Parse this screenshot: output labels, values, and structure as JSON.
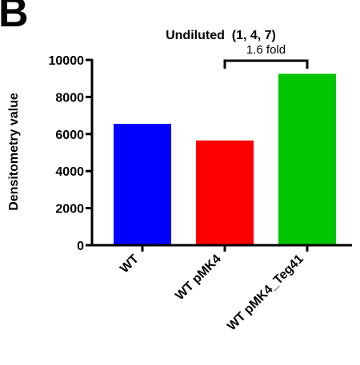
{
  "panel_label": "B",
  "chart_data": {
    "type": "bar",
    "title": "Undiluted  (1, 4, 7)",
    "ylabel": "Densitometry value",
    "xlabel": "",
    "categories": [
      "WT",
      "WT pMK4",
      "WT pMK4_Teg41"
    ],
    "values": [
      6550,
      5650,
      9250
    ],
    "colors": [
      "#0000ff",
      "#ff0000",
      "#00c400"
    ],
    "ylim": [
      0,
      10000
    ],
    "yticks": [
      "0",
      "2000",
      "4000",
      "6000",
      "8000",
      "10000"
    ],
    "ytick_values": [
      0,
      2000,
      4000,
      6000,
      8000,
      10000
    ],
    "grid": false,
    "annotation": {
      "text": "1.6 fold",
      "from_category": "WT pMK4",
      "to_category": "WT pMK4_Teg41"
    }
  }
}
